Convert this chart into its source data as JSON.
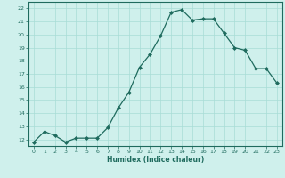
{
  "x": [
    0,
    1,
    2,
    3,
    4,
    5,
    6,
    7,
    8,
    9,
    10,
    11,
    12,
    13,
    14,
    15,
    16,
    17,
    18,
    19,
    20,
    21,
    22,
    23
  ],
  "y": [
    11.8,
    12.6,
    12.3,
    11.8,
    12.1,
    12.1,
    12.1,
    12.9,
    14.4,
    15.6,
    17.5,
    18.5,
    19.9,
    21.7,
    21.9,
    21.1,
    21.2,
    21.2,
    20.1,
    19.0,
    18.8,
    17.4,
    17.4,
    16.3
  ],
  "xlabel": "Humidex (Indice chaleur)",
  "line_color": "#1f6b5e",
  "bg_color": "#cff0ec",
  "grid_color": "#a8ddd6",
  "xlim": [
    -0.5,
    23.5
  ],
  "ylim": [
    11.5,
    22.5
  ],
  "yticks": [
    12,
    13,
    14,
    15,
    16,
    17,
    18,
    19,
    20,
    21,
    22
  ],
  "xticks": [
    0,
    1,
    2,
    3,
    4,
    5,
    6,
    7,
    8,
    9,
    10,
    11,
    12,
    13,
    14,
    15,
    16,
    17,
    18,
    19,
    20,
    21,
    22,
    23
  ]
}
